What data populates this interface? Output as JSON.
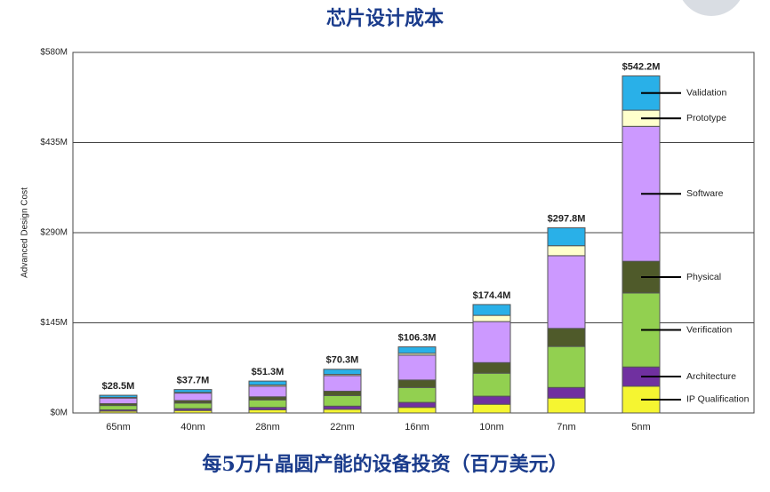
{
  "chart_data": {
    "type": "stacked-bar",
    "title": "芯片设计成本",
    "subtitle": "每5万片晶圆产能的设备投资（百万美元）",
    "y_label": "Advanced Design Cost",
    "categories": [
      "65nm",
      "40nm",
      "28nm",
      "22nm",
      "16nm",
      "10nm",
      "7nm",
      "5nm"
    ],
    "ylim": [
      0,
      580
    ],
    "yticks": [
      {
        "value": 0,
        "label": "$0M"
      },
      {
        "value": 145,
        "label": "$145M"
      },
      {
        "value": 290,
        "label": "$290M"
      },
      {
        "value": 435,
        "label": "$435M"
      },
      {
        "value": 580,
        "label": "$580M"
      }
    ],
    "grid": true,
    "series": [
      {
        "name": "IP Qualification",
        "color": "#f5f531",
        "values": [
          3,
          4,
          5,
          6,
          9,
          14,
          24,
          43
        ]
      },
      {
        "name": "Architecture",
        "color": "#7030a0",
        "values": [
          2,
          3,
          4,
          5,
          8,
          13,
          17,
          31
        ]
      },
      {
        "name": "Verification",
        "color": "#92d050",
        "values": [
          7,
          9,
          12,
          17,
          24,
          37,
          66,
          119
        ]
      },
      {
        "name": "Physical",
        "color": "#4f5a2a",
        "values": [
          3,
          4,
          5,
          7,
          12,
          17,
          29,
          51
        ]
      },
      {
        "name": "Software",
        "color": "#cc99ff",
        "values": [
          9,
          12,
          17,
          25,
          40,
          66,
          117,
          217
        ]
      },
      {
        "name": "Prototype",
        "color": "#ffffcc",
        "values": [
          1,
          1,
          2,
          2,
          3,
          10,
          16,
          26
        ]
      },
      {
        "name": "Validation",
        "color": "#29b0e8",
        "values": [
          3.5,
          4.7,
          6.3,
          8.3,
          10.3,
          17.4,
          28.8,
          55.2
        ]
      }
    ],
    "totals": {
      "values": [
        28.5,
        37.7,
        51.3,
        70.3,
        106.3,
        174.4,
        297.8,
        542.2
      ],
      "value_labels": [
        "$28.5M",
        "$37.7M",
        "$51.3M",
        "$70.3M",
        "$106.3M",
        "$174.4M",
        "$297.8M",
        "$542.2M"
      ]
    }
  }
}
